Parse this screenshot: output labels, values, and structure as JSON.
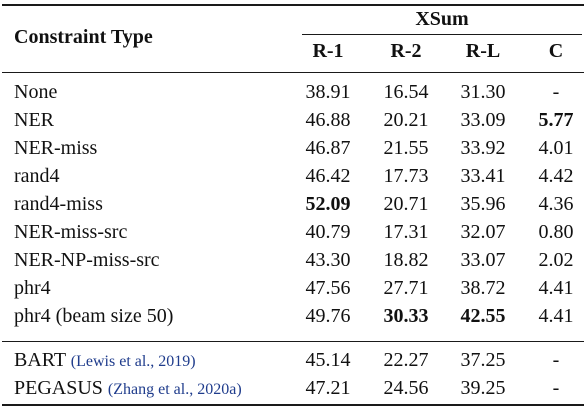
{
  "header": {
    "constraint_label": "Constraint Type",
    "dataset": "XSum",
    "columns": [
      "R-1",
      "R-2",
      "R-L",
      "C"
    ]
  },
  "rows": [
    {
      "label": "None",
      "cite": "",
      "r1": "38.91",
      "r2": "16.54",
      "rl": "31.30",
      "c": "-",
      "bold": []
    },
    {
      "label": "NER",
      "cite": "",
      "r1": "46.88",
      "r2": "20.21",
      "rl": "33.09",
      "c": "5.77",
      "bold": [
        "c"
      ]
    },
    {
      "label": "NER-miss",
      "cite": "",
      "r1": "46.87",
      "r2": "21.55",
      "rl": "33.92",
      "c": "4.01",
      "bold": []
    },
    {
      "label": "rand4",
      "cite": "",
      "r1": "46.42",
      "r2": "17.73",
      "rl": "33.41",
      "c": "4.42",
      "bold": []
    },
    {
      "label": "rand4-miss",
      "cite": "",
      "r1": "52.09",
      "r2": "20.71",
      "rl": "35.96",
      "c": "4.36",
      "bold": [
        "r1"
      ]
    },
    {
      "label": "NER-miss-src",
      "cite": "",
      "r1": "40.79",
      "r2": "17.31",
      "rl": "32.07",
      "c": "0.80",
      "bold": []
    },
    {
      "label": "NER-NP-miss-src",
      "cite": "",
      "r1": "43.30",
      "r2": "18.82",
      "rl": "33.07",
      "c": "2.02",
      "bold": []
    },
    {
      "label": "phr4",
      "cite": "",
      "r1": "47.56",
      "r2": "27.71",
      "rl": "38.72",
      "c": "4.41",
      "bold": []
    },
    {
      "label": "phr4 (beam size 50)",
      "cite": "",
      "r1": "49.76",
      "r2": "30.33",
      "rl": "42.55",
      "c": "4.41",
      "bold": [
        "r2",
        "rl"
      ]
    },
    {
      "label": "BART",
      "cite": "(Lewis et al., 2019)",
      "r1": "45.14",
      "r2": "22.27",
      "rl": "37.25",
      "c": "-",
      "bold": []
    },
    {
      "label": "PEGASUS",
      "cite": "(Zhang et al., 2020a)",
      "r1": "47.21",
      "r2": "24.56",
      "rl": "39.25",
      "c": "-",
      "bold": []
    }
  ]
}
